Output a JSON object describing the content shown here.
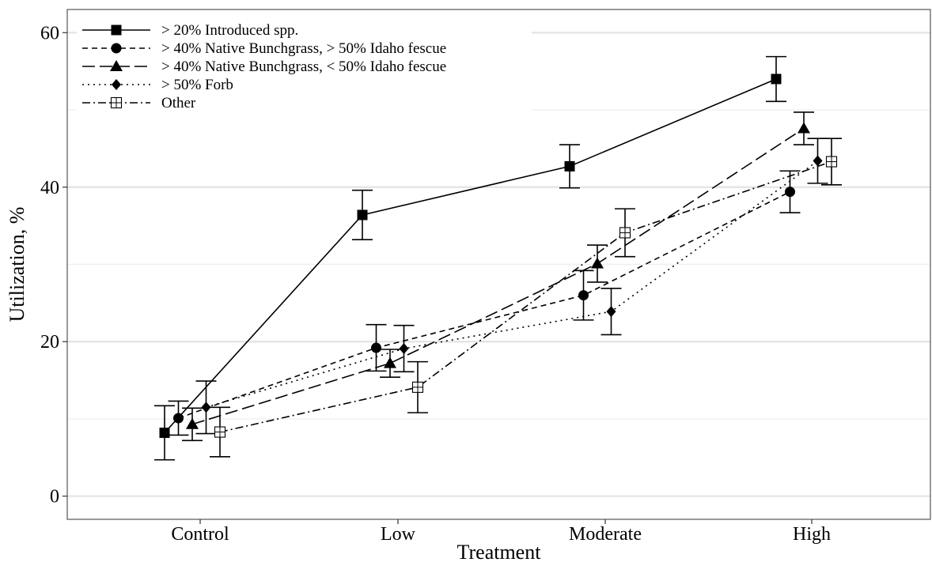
{
  "chart_data": {
    "type": "line",
    "xlabel": "Treatment",
    "ylabel": "Utilization, %",
    "categories": [
      "Control",
      "Low",
      "Moderate",
      "High"
    ],
    "ylim": [
      -3,
      63
    ],
    "yticks": [
      0,
      20,
      40,
      60
    ],
    "grid": "horizontal",
    "legend_position": "top-left",
    "series": [
      {
        "name": "> 20% Introduced spp.",
        "marker": "filled-square",
        "dash": "solid",
        "offset": -0.18,
        "color": "#000000",
        "values": [
          8.2,
          36.4,
          42.7,
          54.0
        ],
        "err": [
          3.5,
          3.2,
          2.8,
          2.9
        ]
      },
      {
        "name": "> 40% Native Bunchgrass, > 50% Idaho fescue",
        "marker": "filled-circle",
        "dash": "short-dash",
        "offset": -0.11,
        "color": "#000000",
        "values": [
          10.1,
          19.2,
          26.0,
          39.4
        ],
        "err": [
          2.2,
          3.0,
          3.2,
          2.7
        ]
      },
      {
        "name": "> 40% Native Bunchgrass, < 50% Idaho fescue",
        "marker": "filled-triangle",
        "dash": "long-dash",
        "offset": -0.04,
        "color": "#000000",
        "values": [
          9.3,
          17.2,
          30.1,
          47.6
        ],
        "err": [
          2.1,
          1.8,
          2.4,
          2.1
        ]
      },
      {
        "name": "> 50% Forb",
        "marker": "filled-diamond",
        "dash": "dotted",
        "offset": 0.03,
        "color": "#000000",
        "values": [
          11.5,
          19.1,
          23.9,
          43.4
        ],
        "err": [
          3.4,
          3.0,
          3.0,
          2.9
        ]
      },
      {
        "name": "Other",
        "marker": "crossed-square",
        "dash": "dash-dot",
        "offset": 0.1,
        "color": "#000000",
        "values": [
          8.3,
          14.1,
          34.1,
          43.3
        ],
        "err": [
          3.2,
          3.3,
          3.1,
          3.0
        ]
      }
    ]
  }
}
